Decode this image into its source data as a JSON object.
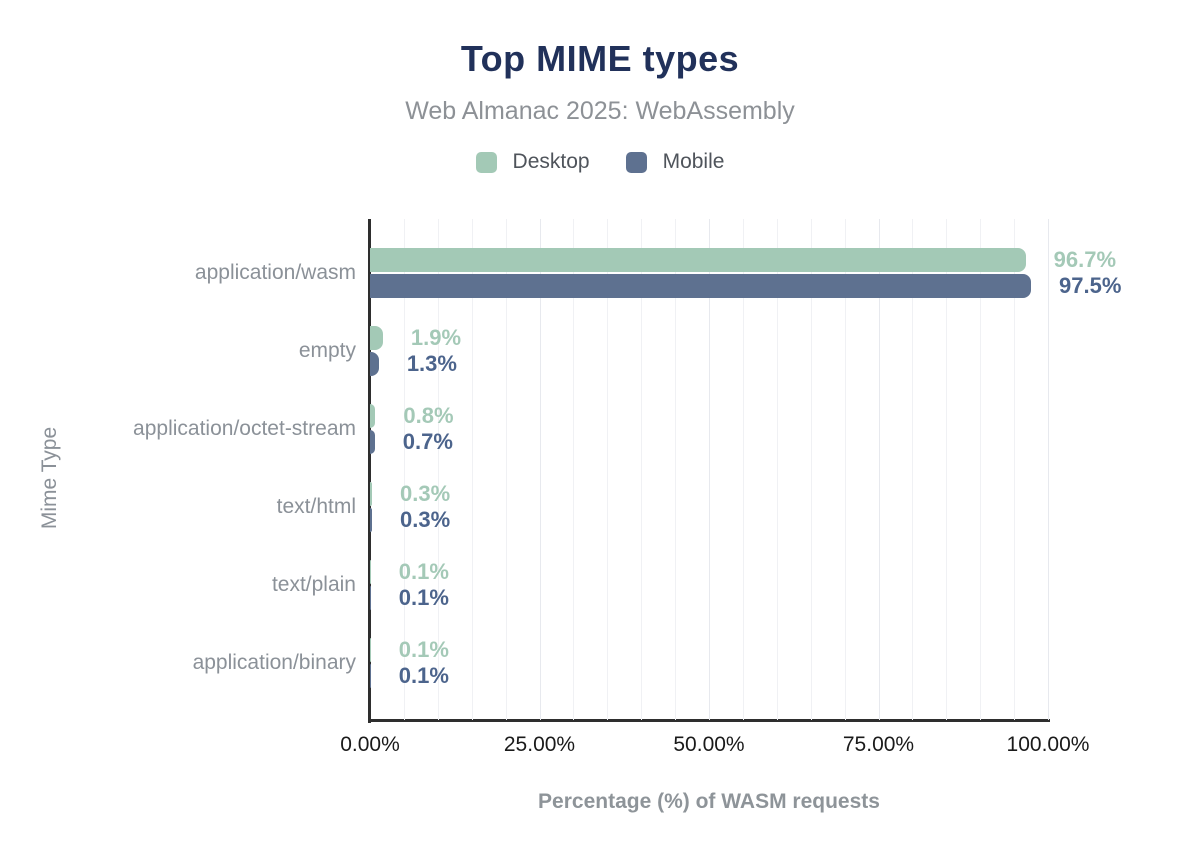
{
  "chart_data": {
    "type": "bar",
    "orientation": "horizontal",
    "title": "Top MIME types",
    "subtitle": "Web Almanac 2025: WebAssembly",
    "categories": [
      "application/wasm",
      "empty",
      "application/octet-stream",
      "text/html",
      "text/plain",
      "application/binary"
    ],
    "series": [
      {
        "name": "Desktop",
        "color": "#a3c9b6",
        "label_color": "#a4c9b7",
        "values": [
          96.7,
          1.9,
          0.8,
          0.3,
          0.1,
          0.1
        ],
        "labels": [
          "96.7%",
          "1.9%",
          "0.8%",
          "0.3%",
          "0.1%",
          "0.1%"
        ]
      },
      {
        "name": "Mobile",
        "color": "#5e7190",
        "label_color": "#4c648c",
        "values": [
          97.5,
          1.3,
          0.7,
          0.3,
          0.1,
          0.1
        ],
        "labels": [
          "97.5%",
          "1.3%",
          "0.7%",
          "0.3%",
          "0.1%",
          "0.1%"
        ]
      }
    ],
    "xlabel": "Percentage (%) of WASM requests",
    "ylabel": "Mime Type",
    "xlim": [
      0,
      100
    ],
    "x_ticks": [
      "0.00%",
      "25.00%",
      "50.00%",
      "75.00%",
      "100.00%"
    ],
    "x_tick_values": [
      0,
      25,
      50,
      75,
      100
    ],
    "grid_step_percent": 5,
    "legend_position": "top",
    "grid": "vertical-on"
  },
  "colors": {
    "title": "#21315a",
    "subtitle": "#8d9196",
    "category_labels": "#8b9198",
    "tick_labels": "#1a1a1a",
    "axis_lines": "#2e2e2e",
    "gridlines": "#f0f1f4",
    "desktop": "#a3c9b6",
    "mobile": "#5e7190"
  }
}
